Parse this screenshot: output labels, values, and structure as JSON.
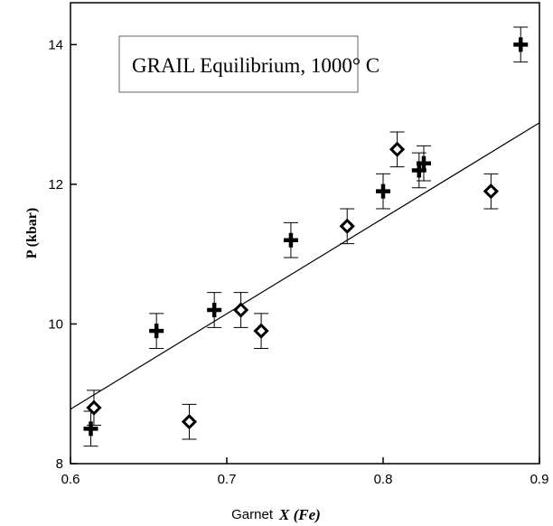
{
  "chart_data": {
    "type": "scatter",
    "title": "GRAIL Equilibrium, 1000° C",
    "xlabel_prefix": "Garnet",
    "xlabel": "X (Fe)",
    "ylabel": "P (kbar)",
    "xlim": [
      0.6,
      0.9
    ],
    "ylim": [
      8,
      14.6
    ],
    "xticks": [
      0.6,
      0.7,
      0.8,
      0.9
    ],
    "xtick_labels": [
      "0.6",
      "0.7",
      "0.8",
      "0.9"
    ],
    "yticks": [
      8,
      10,
      12,
      14
    ],
    "ytick_labels": [
      "8",
      "10",
      "12",
      "14"
    ],
    "grid": false,
    "legend": "none",
    "fit_line": {
      "x": [
        0.6,
        0.9
      ],
      "y": [
        8.78,
        12.88
      ]
    },
    "series": [
      {
        "marker": "plus",
        "points": [
          {
            "x": 0.613,
            "y": 8.5,
            "err": 0.25
          },
          {
            "x": 0.655,
            "y": 9.9,
            "err": 0.25
          },
          {
            "x": 0.692,
            "y": 10.2,
            "err": 0.25
          },
          {
            "x": 0.741,
            "y": 11.2,
            "err": 0.25
          },
          {
            "x": 0.8,
            "y": 11.9,
            "err": 0.25
          },
          {
            "x": 0.823,
            "y": 12.2,
            "err": 0.25
          },
          {
            "x": 0.826,
            "y": 12.3,
            "err": 0.25
          },
          {
            "x": 0.888,
            "y": 14.0,
            "err": 0.25
          }
        ]
      },
      {
        "marker": "diamond",
        "points": [
          {
            "x": 0.615,
            "y": 8.8,
            "err": 0.25
          },
          {
            "x": 0.676,
            "y": 8.6,
            "err": 0.25
          },
          {
            "x": 0.709,
            "y": 10.2,
            "err": 0.25
          },
          {
            "x": 0.722,
            "y": 9.9,
            "err": 0.25
          },
          {
            "x": 0.777,
            "y": 11.4,
            "err": 0.25
          },
          {
            "x": 0.809,
            "y": 12.5,
            "err": 0.25
          },
          {
            "x": 0.869,
            "y": 11.9,
            "err": 0.25
          }
        ]
      }
    ]
  }
}
